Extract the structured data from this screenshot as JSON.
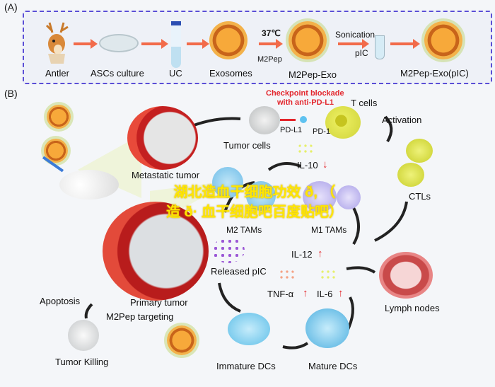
{
  "panel_a": {
    "label": "(A)",
    "steps": [
      "Antler",
      "ASCs culture",
      "UC",
      "Exosomes",
      "M2Pep-Exo",
      "M2Pep-Exo(pIC)"
    ],
    "temperature": "37℃",
    "peptide": "M2Pep",
    "sonication": "Sonication",
    "pic": "pIC"
  },
  "panel_b": {
    "label": "(B)",
    "checkpoint_line1": "Checkpoint blockade",
    "checkpoint_line2": "with anti-PD-L1",
    "t_cells": "T cells",
    "pd_l1": "PD-L1",
    "pd_1": "PD-1",
    "tumor_cells": "Tumor cells",
    "activation": "Activation",
    "metastatic_tumor": "Metastatic tumor",
    "il10": "IL-10",
    "m2_tams": "M2 TAMs",
    "m1_tams": "M1 TAMs",
    "ctls": "CTLs",
    "released_pic": "Released pIC",
    "il12": "IL-12",
    "tnf": "TNF-α",
    "il6": "IL-6",
    "primary_tumor": "Primary tumor",
    "m2pep_targeting": "M2Pep targeting",
    "apoptosis": "Apoptosis",
    "tumor_killing": "Tumor Killing",
    "immature_dcs": "Immature DCs",
    "mature_dcs": "Mature DCs",
    "lymph_nodes": "Lymph nodes",
    "up_arrow": "↑",
    "down_arrow": "↓"
  },
  "watermark": {
    "line1": "湖北造血干细胞功效 ð, （",
    "line2": "造 ð· 血干细胞吧百度贴吧）"
  },
  "colors": {
    "dashed_border": "#5b4fd6",
    "process_arrow": "#f26b4a",
    "checkpoint_text": "#e3262c",
    "watermark": "#ffe600"
  }
}
